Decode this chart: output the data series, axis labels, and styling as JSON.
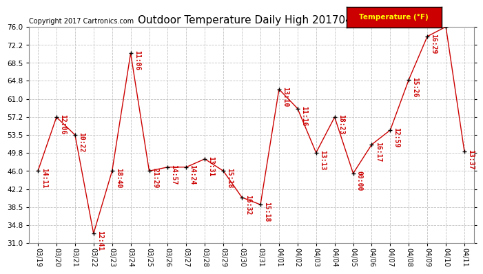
{
  "title": "Outdoor Temperature Daily High 20170412",
  "copyright": "Copyright 2017 Cartronics.com",
  "legend_label": "Temperature (°F)",
  "dates": [
    "03/19",
    "03/20",
    "03/21",
    "03/22",
    "03/23",
    "03/24",
    "03/25",
    "03/26",
    "03/27",
    "03/28",
    "03/29",
    "03/30",
    "03/31",
    "04/01",
    "04/02",
    "04/03",
    "04/04",
    "04/05",
    "04/06",
    "04/07",
    "04/08",
    "04/09",
    "04/10",
    "04/11"
  ],
  "values": [
    46.0,
    57.2,
    53.5,
    33.0,
    46.0,
    70.5,
    46.0,
    46.8,
    46.8,
    48.5,
    46.0,
    40.5,
    39.0,
    63.0,
    59.0,
    49.8,
    57.2,
    45.5,
    51.5,
    54.5,
    65.0,
    74.0,
    76.0,
    50.0
  ],
  "labels": [
    "14:11",
    "12:06",
    "10:22",
    "12:41",
    "18:40",
    "11:06",
    "21:29",
    "14:57",
    "14:24",
    "13:31",
    "15:18",
    "16:32",
    "15:18",
    "13:10",
    "11:16",
    "13:13",
    "18:23",
    "00:00",
    "16:17",
    "12:59",
    "15:26",
    "16:29",
    "",
    "13:37"
  ],
  "ylim": [
    31.0,
    76.0
  ],
  "yticks": [
    31.0,
    34.8,
    38.5,
    42.2,
    46.0,
    49.8,
    53.5,
    57.2,
    61.0,
    64.8,
    68.5,
    72.2,
    76.0
  ],
  "line_color": "#cc0000",
  "marker_color": "#000000",
  "bg_color": "#ffffff",
  "grid_color": "#c0c0c0",
  "title_fontsize": 11,
  "annotation_fontsize": 7,
  "copyright_fontsize": 7,
  "legend_bg": "#cc0000",
  "legend_fg": "#ffff00"
}
